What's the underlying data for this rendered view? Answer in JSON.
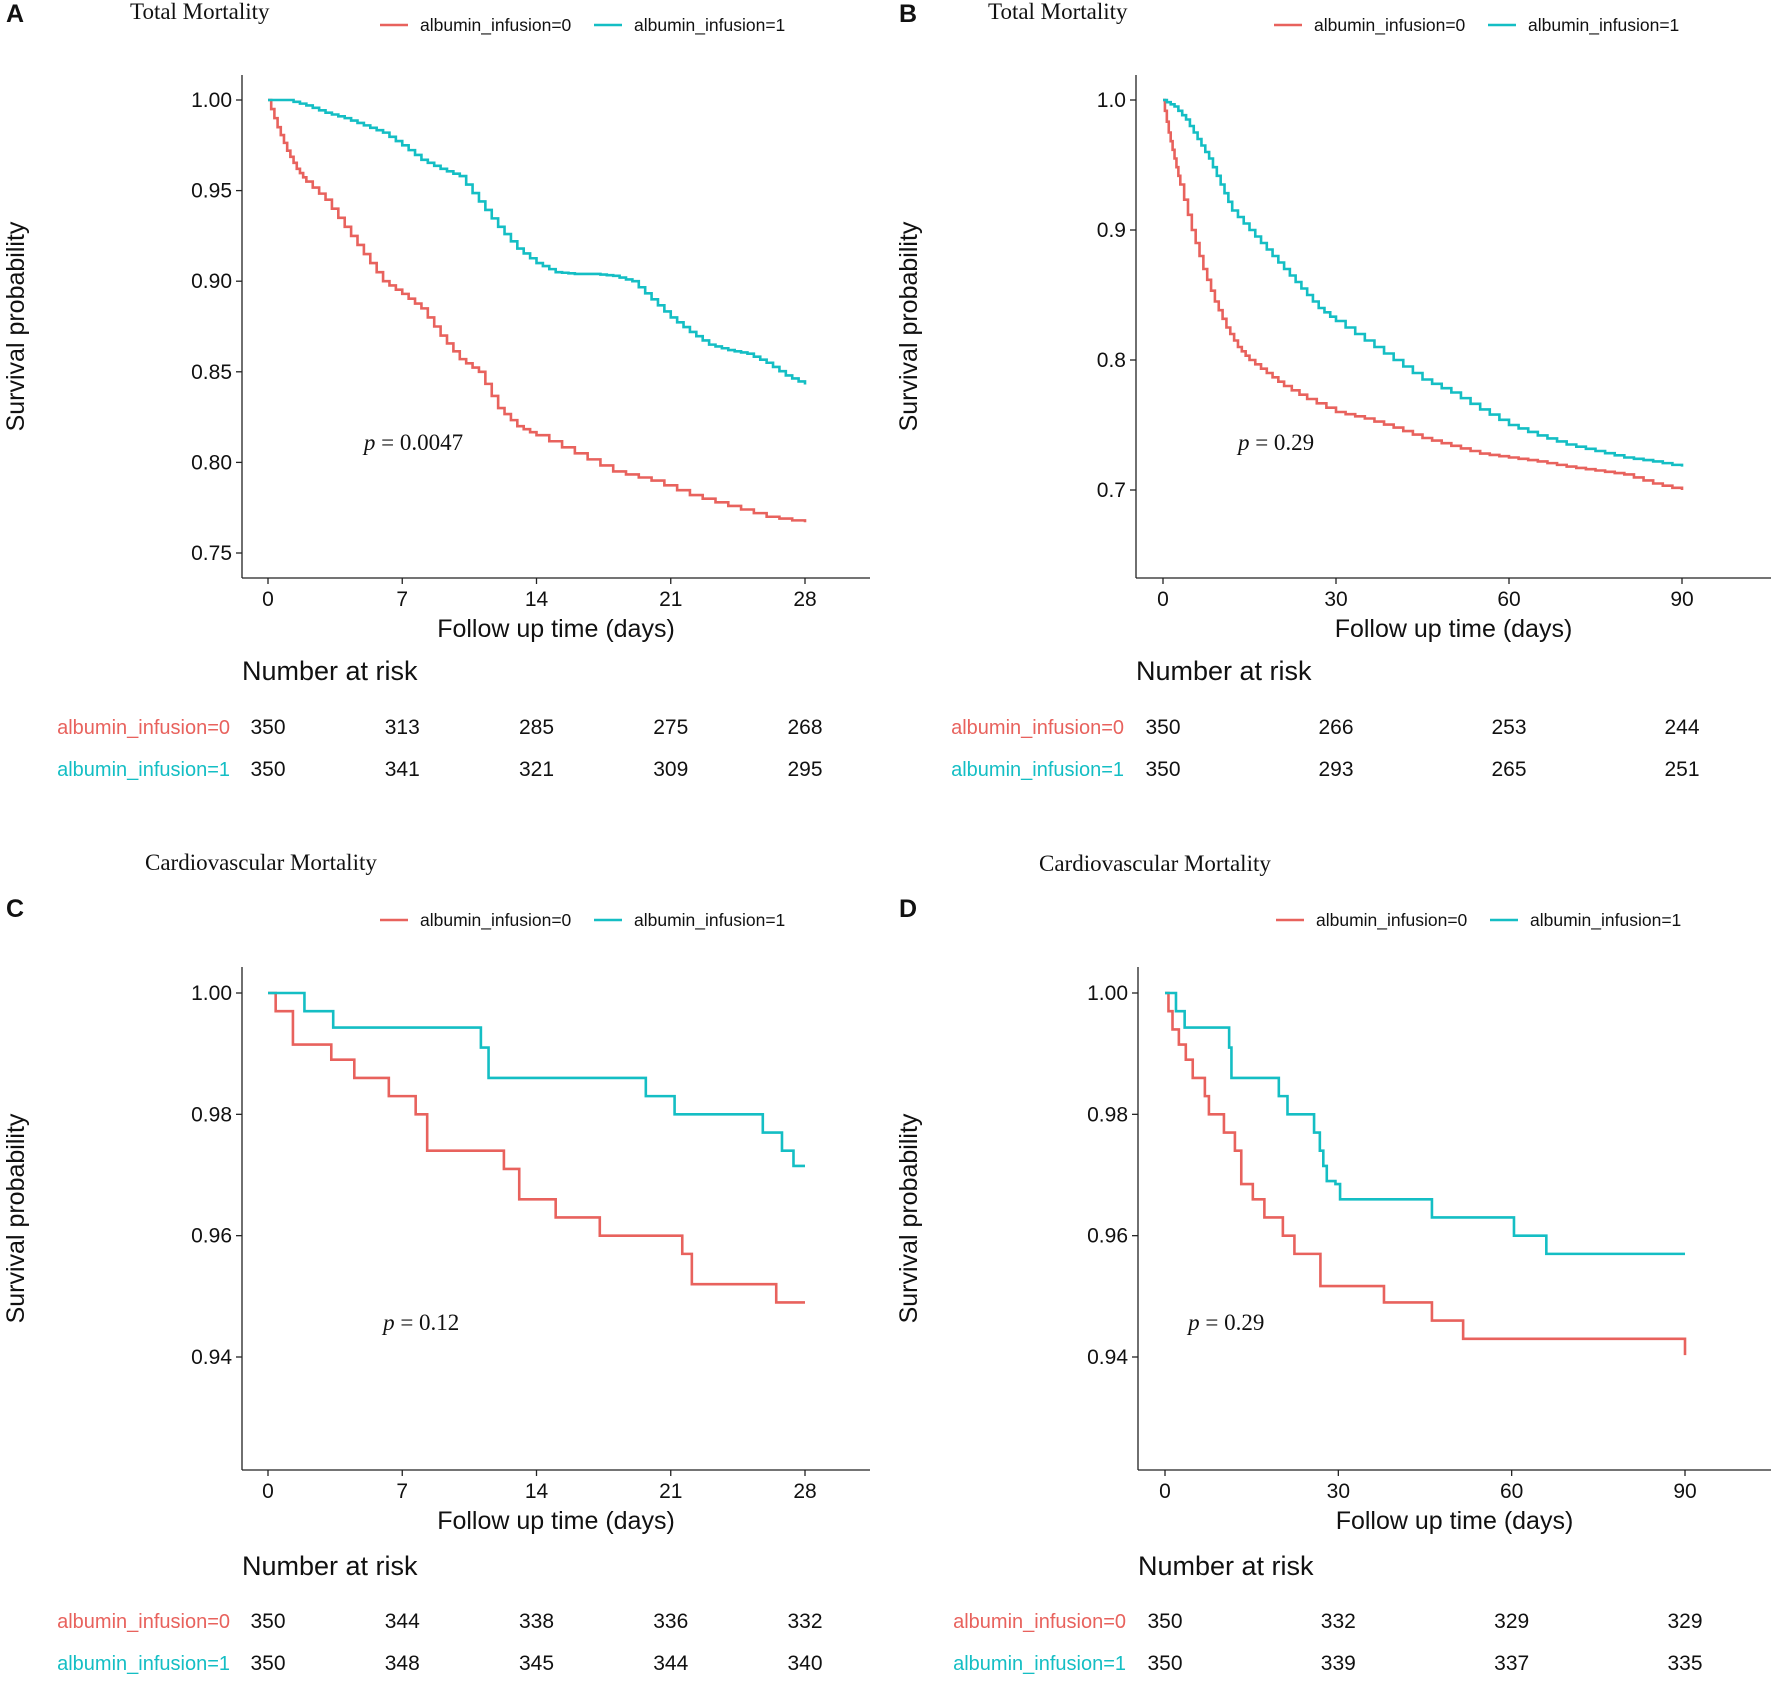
{
  "colors": {
    "group0": "#E8625D",
    "group1": "#14BEC4",
    "axis": "#222222"
  },
  "legend": {
    "group0": "albumin_infusion=0",
    "group1": "albumin_infusion=1"
  },
  "risk_header": "Number at risk",
  "chart_data": [
    {
      "id": "A",
      "letter": "A",
      "type": "line",
      "title": "Total Mortality",
      "xlabel": "Follow up time (days)",
      "ylabel": "Survival probability",
      "xlim": [
        0,
        28
      ],
      "ylim": [
        0.75,
        1.0
      ],
      "xticks": [
        0,
        7,
        14,
        21,
        28
      ],
      "yticks": [
        1.0,
        0.95,
        0.9,
        0.85,
        0.8,
        0.75
      ],
      "ytick_labels": [
        "1.00",
        "0.95",
        "0.90",
        "0.85",
        "0.80",
        "0.75"
      ],
      "p_label": "p",
      "p_value": "= 0.0047",
      "p_pos_data": [
        5,
        0.81
      ],
      "series": [
        {
          "name": "albumin_infusion=0",
          "x": [
            0,
            0.5,
            1,
            1.5,
            2,
            3,
            4,
            5,
            6,
            7,
            8,
            9,
            10,
            11,
            12,
            13,
            14,
            16,
            18,
            20,
            22,
            24,
            26,
            28
          ],
          "y": [
            1.0,
            0.985,
            0.972,
            0.962,
            0.955,
            0.945,
            0.93,
            0.915,
            0.9,
            0.893,
            0.885,
            0.87,
            0.857,
            0.85,
            0.83,
            0.82,
            0.815,
            0.805,
            0.795,
            0.79,
            0.782,
            0.776,
            0.77,
            0.767
          ]
        },
        {
          "name": "albumin_infusion=1",
          "x": [
            0,
            1,
            2,
            3,
            4,
            5,
            6,
            7,
            8,
            9,
            10,
            11,
            12,
            13,
            14,
            15,
            16,
            17,
            18,
            19,
            20,
            21,
            22,
            23,
            24,
            25,
            26,
            27,
            28
          ],
          "y": [
            1.0,
            1.0,
            0.997,
            0.993,
            0.99,
            0.986,
            0.982,
            0.975,
            0.967,
            0.962,
            0.958,
            0.944,
            0.93,
            0.918,
            0.91,
            0.905,
            0.904,
            0.904,
            0.903,
            0.9,
            0.89,
            0.88,
            0.872,
            0.865,
            0.862,
            0.86,
            0.855,
            0.848,
            0.843
          ]
        }
      ],
      "risk_table": {
        "times": [
          0,
          7,
          14,
          21,
          28
        ],
        "group0": [
          350,
          313,
          285,
          275,
          268
        ],
        "group1": [
          350,
          341,
          321,
          309,
          295
        ]
      }
    },
    {
      "id": "B",
      "letter": "B",
      "type": "line",
      "title": "Total Mortality",
      "xlabel": "Follow up time (days)",
      "ylabel": "Survival probability",
      "xlim": [
        0,
        90
      ],
      "ylim": [
        0.635,
        1.0
      ],
      "xticks": [
        0,
        30,
        60,
        90
      ],
      "yticks": [
        1.0,
        0.9,
        0.8,
        0.7
      ],
      "ytick_labels": [
        "1.0",
        "0.9",
        "0.8",
        "0.7"
      ],
      "p_label": "p",
      "p_value": "= 0.29",
      "p_pos_data": [
        13,
        0.733
      ],
      "series": [
        {
          "name": "albumin_infusion=0",
          "x": [
            0,
            1,
            2,
            3,
            5,
            7,
            9,
            11,
            13,
            15,
            18,
            21,
            25,
            30,
            35,
            40,
            45,
            50,
            55,
            60,
            65,
            70,
            75,
            80,
            85,
            90
          ],
          "y": [
            1.0,
            0.975,
            0.955,
            0.935,
            0.9,
            0.87,
            0.845,
            0.825,
            0.81,
            0.8,
            0.79,
            0.78,
            0.77,
            0.76,
            0.755,
            0.748,
            0.74,
            0.734,
            0.728,
            0.725,
            0.722,
            0.718,
            0.715,
            0.712,
            0.705,
            0.7
          ]
        },
        {
          "name": "albumin_infusion=1",
          "x": [
            0,
            2,
            4,
            6,
            8,
            10,
            12,
            15,
            18,
            21,
            24,
            27,
            30,
            35,
            40,
            45,
            50,
            55,
            60,
            65,
            70,
            75,
            80,
            85,
            90
          ],
          "y": [
            1.0,
            0.995,
            0.985,
            0.97,
            0.955,
            0.935,
            0.915,
            0.9,
            0.885,
            0.87,
            0.855,
            0.84,
            0.83,
            0.815,
            0.8,
            0.785,
            0.775,
            0.762,
            0.75,
            0.742,
            0.735,
            0.73,
            0.725,
            0.722,
            0.718
          ]
        }
      ],
      "risk_table": {
        "times": [
          0,
          30,
          60,
          90
        ],
        "group0": [
          350,
          266,
          253,
          244
        ],
        "group1": [
          350,
          293,
          265,
          251
        ]
      }
    },
    {
      "id": "C",
      "letter": "C",
      "type": "line",
      "title": "Cardiovascular Mortality",
      "xlabel": "Follow up time (days)",
      "ylabel": "Survival probability",
      "xlim": [
        0,
        28
      ],
      "ylim": [
        0.922,
        1.003
      ],
      "xticks": [
        0,
        7,
        14,
        21,
        28
      ],
      "yticks": [
        1.0,
        0.98,
        0.96,
        0.94
      ],
      "ytick_labels": [
        "1.00",
        "0.98",
        "0.96",
        "0.94"
      ],
      "p_label": "p",
      "p_value": "= 0.12",
      "p_pos_data": [
        6,
        0.9455
      ],
      "step": true,
      "series": [
        {
          "name": "albumin_infusion=0",
          "x": [
            0,
            0.4,
            1.3,
            3.3,
            4.5,
            6.3,
            7.7,
            8.3,
            12.3,
            13.1,
            15,
            17.3,
            21.6,
            22.1,
            26.5,
            28
          ],
          "y": [
            1.0,
            0.997,
            0.9915,
            0.989,
            0.986,
            0.983,
            0.98,
            0.974,
            0.971,
            0.966,
            0.963,
            0.96,
            0.957,
            0.952,
            0.949,
            0.949
          ]
        },
        {
          "name": "albumin_infusion=1",
          "x": [
            0,
            1.9,
            3.4,
            11.1,
            11.5,
            19.7,
            21.2,
            25.8,
            26.8,
            27.4,
            28
          ],
          "y": [
            1.0,
            0.997,
            0.9943,
            0.991,
            0.986,
            0.983,
            0.98,
            0.977,
            0.974,
            0.9715,
            0.9715
          ]
        }
      ],
      "risk_table": {
        "times": [
          0,
          7,
          14,
          21,
          28
        ],
        "group0": [
          350,
          344,
          338,
          336,
          332
        ],
        "group1": [
          350,
          348,
          345,
          344,
          340
        ]
      }
    },
    {
      "id": "D",
      "letter": "D",
      "type": "line",
      "title": "Cardiovascular Mortality",
      "xlabel": "Follow up time (days)",
      "ylabel": "Survival probability",
      "xlim": [
        0,
        90
      ],
      "ylim": [
        0.922,
        1.003
      ],
      "xticks": [
        0,
        30,
        60,
        90
      ],
      "yticks": [
        1.0,
        0.98,
        0.96,
        0.94
      ],
      "ytick_labels": [
        "1.00",
        "0.98",
        "0.96",
        "0.94"
      ],
      "p_label": "p",
      "p_value": "= 0.29",
      "p_pos_data": [
        4,
        0.9455
      ],
      "step": true,
      "series": [
        {
          "name": "albumin_infusion=0",
          "x": [
            0,
            0.6,
            1.3,
            2.4,
            3.6,
            4.8,
            6.9,
            7.6,
            10.2,
            12.1,
            13.2,
            15.2,
            17.2,
            20.4,
            22.4,
            26.9,
            37.9,
            46.2,
            51.6,
            90
          ],
          "y": [
            1.0,
            0.997,
            0.994,
            0.9915,
            0.989,
            0.986,
            0.983,
            0.98,
            0.977,
            0.974,
            0.9685,
            0.966,
            0.963,
            0.96,
            0.957,
            0.9517,
            0.949,
            0.946,
            0.943,
            0.9403
          ]
        },
        {
          "name": "albumin_infusion=1",
          "x": [
            0,
            1.9,
            3.4,
            11.1,
            11.5,
            19.7,
            21.2,
            25.8,
            26.8,
            27.4,
            28,
            29.5,
            30.3,
            46.2,
            60.4,
            66,
            90
          ],
          "y": [
            1.0,
            0.997,
            0.9943,
            0.991,
            0.986,
            0.983,
            0.98,
            0.977,
            0.974,
            0.9715,
            0.969,
            0.9685,
            0.966,
            0.963,
            0.96,
            0.957,
            0.957
          ]
        }
      ],
      "risk_table": {
        "times": [
          0,
          30,
          60,
          90
        ],
        "group0": [
          350,
          332,
          329,
          329
        ],
        "group1": [
          350,
          339,
          337,
          335
        ]
      }
    }
  ]
}
